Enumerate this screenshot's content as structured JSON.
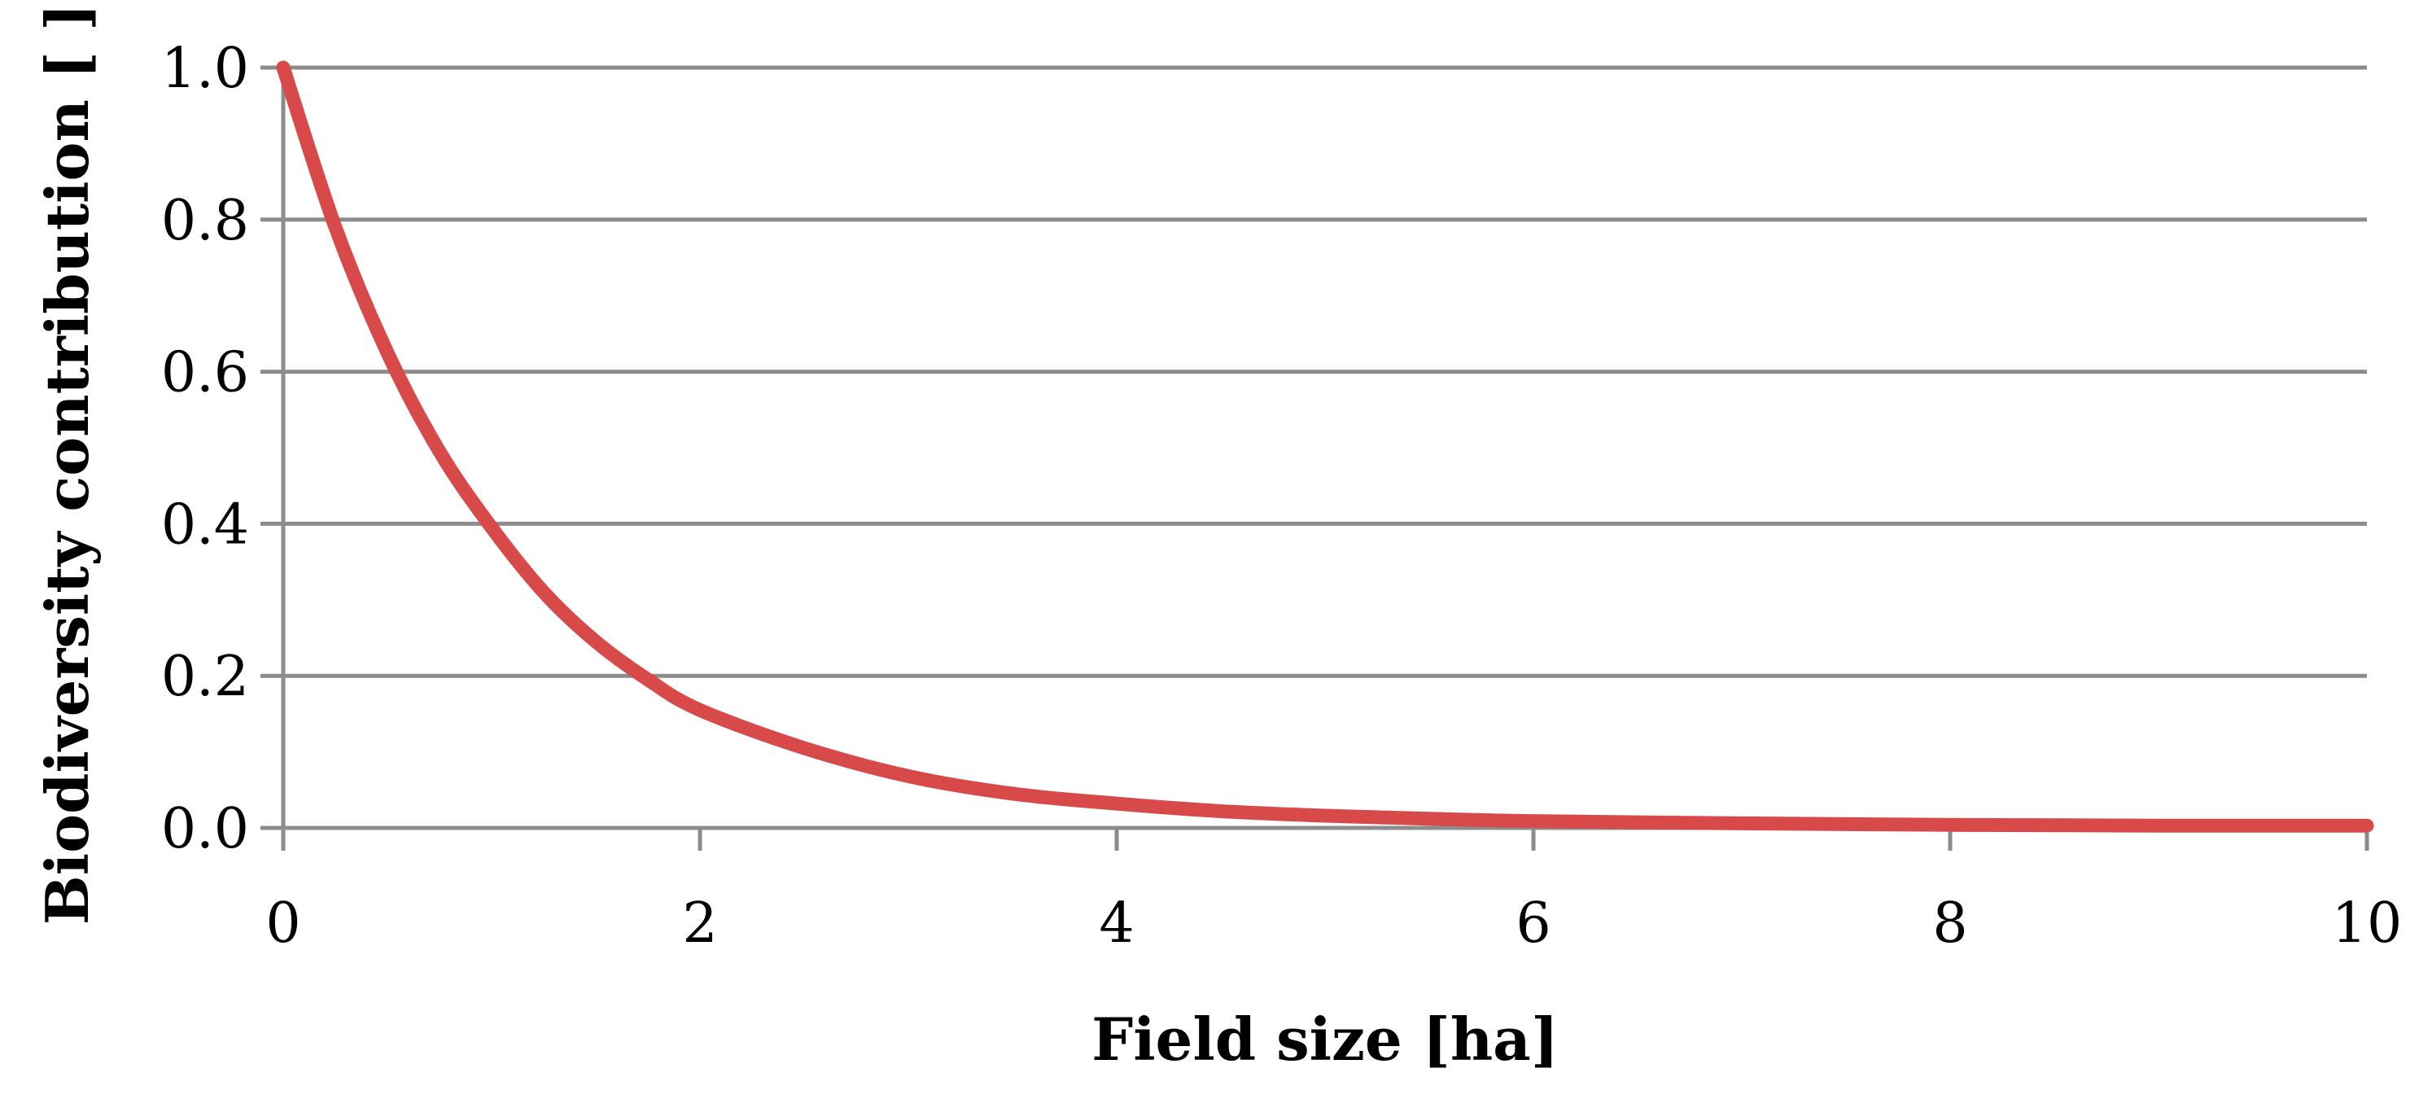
{
  "chart_data": {
    "type": "line",
    "title": "",
    "xlabel": "Field size [ha]",
    "ylabel": "Biodiversity contribution [ ]",
    "xlim": [
      0,
      10
    ],
    "ylim": [
      0.0,
      1.0
    ],
    "x_ticks": [
      0,
      2,
      4,
      6,
      8,
      10
    ],
    "x_tick_labels": [
      "0",
      "2",
      "4",
      "6",
      "8",
      "10"
    ],
    "y_ticks": [
      0.0,
      0.2,
      0.4,
      0.6,
      0.8,
      1.0
    ],
    "y_tick_labels": [
      "0.0",
      "0.2",
      "0.4",
      "0.6",
      "0.8",
      "1.0"
    ],
    "grid": "horizontal",
    "legend": "none",
    "series": [
      {
        "color": "#d84a4a",
        "x": [
          0,
          0.25,
          0.5,
          0.75,
          1.0,
          1.25,
          1.5,
          1.75,
          2.0,
          2.5,
          3.0,
          3.5,
          4.0,
          4.5,
          5.0,
          5.5,
          6.0,
          7.0,
          8.0,
          9.0,
          10.0
        ],
        "y": [
          1.0,
          0.79,
          0.625,
          0.495,
          0.395,
          0.31,
          0.245,
          0.195,
          0.155,
          0.105,
          0.068,
          0.045,
          0.032,
          0.022,
          0.016,
          0.012,
          0.009,
          0.006,
          0.004,
          0.003,
          0.003
        ]
      }
    ]
  }
}
